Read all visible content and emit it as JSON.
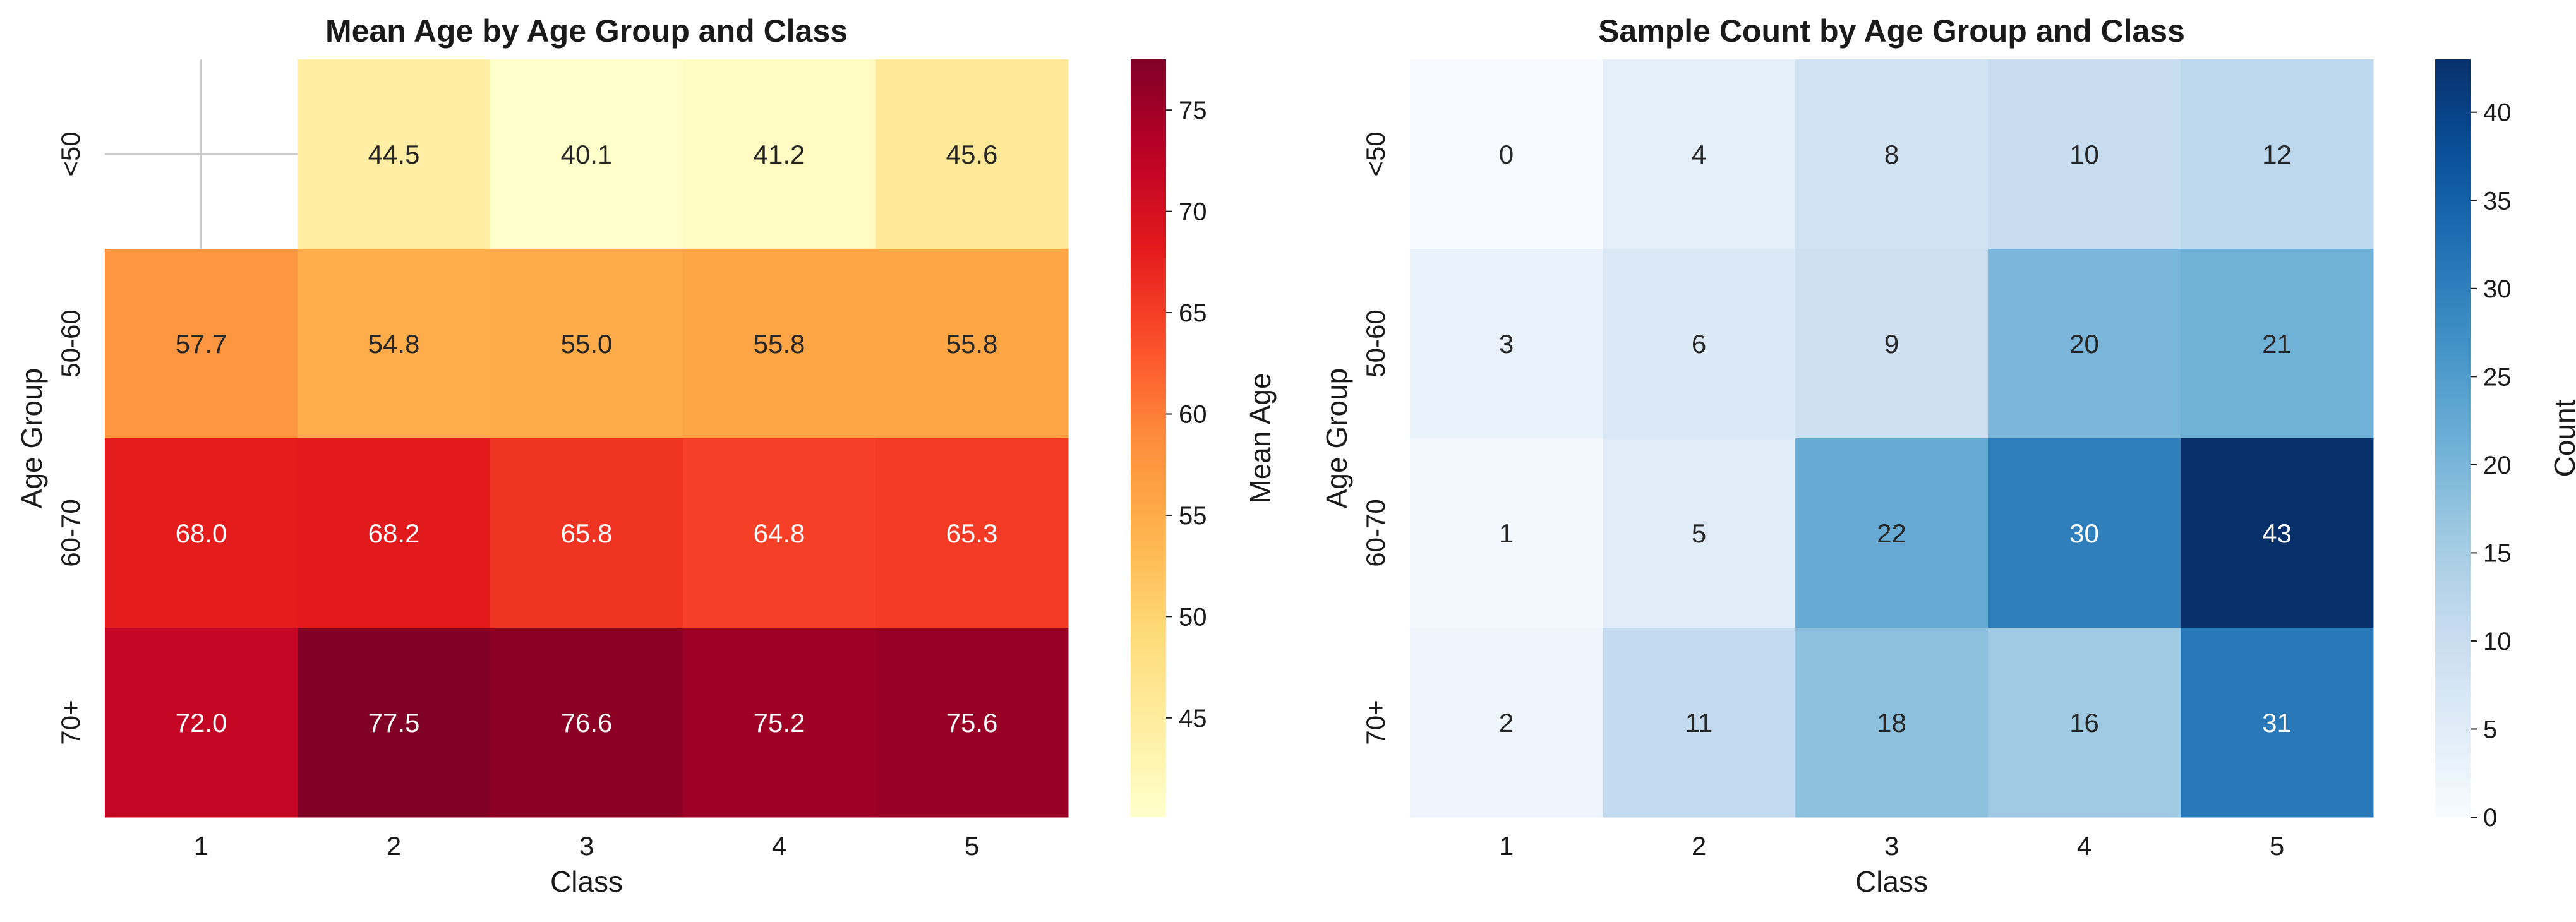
{
  "chart_data": [
    {
      "type": "heatmap",
      "title": "Mean Age by Age Group and Class",
      "xlabel": "Class",
      "ylabel": "Age Group",
      "x_categories": [
        "1",
        "2",
        "3",
        "4",
        "5"
      ],
      "y_categories": [
        "<50",
        "50-60",
        "60-70",
        "70+"
      ],
      "values": [
        [
          null,
          44.5,
          40.1,
          41.2,
          45.6
        ],
        [
          57.7,
          54.8,
          55.0,
          55.8,
          55.8
        ],
        [
          68.0,
          68.2,
          65.8,
          64.8,
          65.3
        ],
        [
          72.0,
          77.5,
          76.6,
          75.2,
          75.6
        ]
      ],
      "cell_labels": [
        [
          "",
          "44.5",
          "40.1",
          "41.2",
          "45.6"
        ],
        [
          "57.7",
          "54.8",
          "55.0",
          "55.8",
          "55.8"
        ],
        [
          "68.0",
          "68.2",
          "65.8",
          "64.8",
          "65.3"
        ],
        [
          "72.0",
          "77.5",
          "76.6",
          "75.2",
          "75.6"
        ]
      ],
      "colormap": "YlOrRd",
      "vmin": 40.1,
      "vmax": 77.5,
      "colorbar": {
        "label": "Mean Age",
        "ticks": [
          45,
          50,
          55,
          60,
          65,
          70,
          75
        ]
      },
      "grid": true
    },
    {
      "type": "heatmap",
      "title": "Sample Count by Age Group and Class",
      "xlabel": "Class",
      "ylabel": "Age Group",
      "x_categories": [
        "1",
        "2",
        "3",
        "4",
        "5"
      ],
      "y_categories": [
        "<50",
        "50-60",
        "60-70",
        "70+"
      ],
      "values": [
        [
          0,
          4,
          8,
          10,
          12
        ],
        [
          3,
          6,
          9,
          20,
          21
        ],
        [
          1,
          5,
          22,
          30,
          43
        ],
        [
          2,
          11,
          18,
          16,
          31
        ]
      ],
      "cell_labels": [
        [
          "0",
          "4",
          "8",
          "10",
          "12"
        ],
        [
          "3",
          "6",
          "9",
          "20",
          "21"
        ],
        [
          "1",
          "5",
          "22",
          "30",
          "43"
        ],
        [
          "2",
          "11",
          "18",
          "16",
          "31"
        ]
      ],
      "colormap": "Blues",
      "vmin": 0,
      "vmax": 43,
      "colorbar": {
        "label": "Count",
        "ticks": [
          0,
          5,
          10,
          15,
          20,
          25,
          30,
          35,
          40
        ]
      },
      "grid": false
    }
  ]
}
